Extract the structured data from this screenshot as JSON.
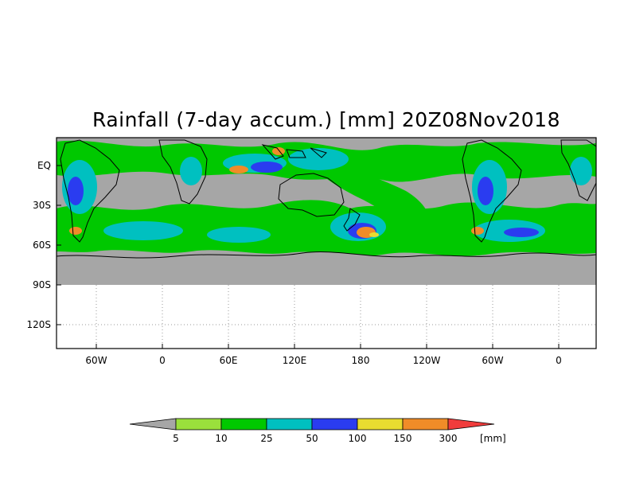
{
  "map": {
    "title": "Rainfall (7-day accum.) [mm] 20Z08Nov2018",
    "lon_labels": [
      "60W",
      "0",
      "60E",
      "120E",
      "180",
      "120W",
      "60W",
      "0"
    ],
    "lat_labels": [
      "EQ",
      "30S",
      "60S",
      "90S",
      "120S"
    ],
    "missing_color": "#a6a6a6",
    "coastline_color": "#000000",
    "grid_style": "dotted"
  },
  "colorbar": {
    "unit": "[mm]",
    "thresholds": [
      "5",
      "10",
      "25",
      "50",
      "100",
      "150",
      "300"
    ],
    "colors": [
      "#a6a6a6",
      "#9ae03c",
      "#00c800",
      "#00c0c0",
      "#2a3cf0",
      "#e8dc30",
      "#f08c28",
      "#f03c3c"
    ]
  }
}
